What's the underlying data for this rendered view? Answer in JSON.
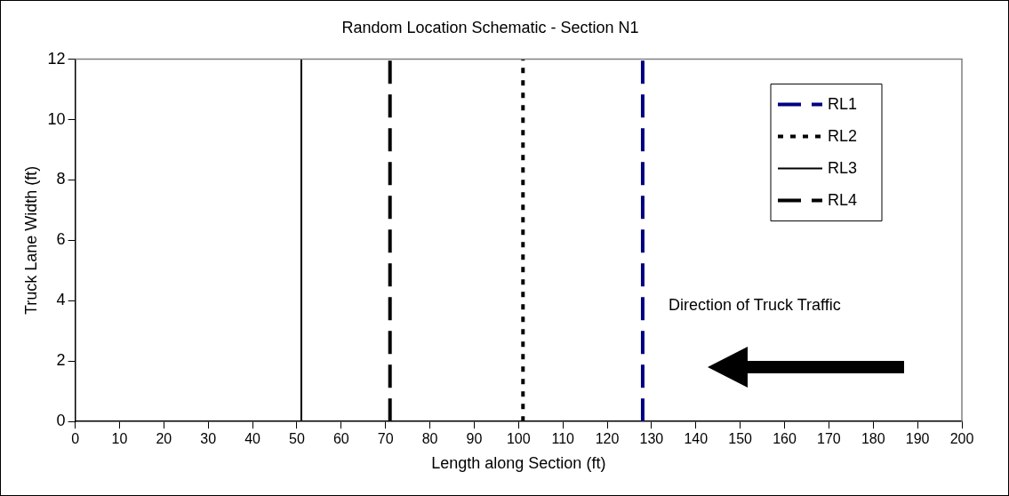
{
  "chart_data": {
    "type": "line",
    "title": "Random Location Schematic - Section N1",
    "xlabel": "Length along Section (ft)",
    "ylabel": "Truck Lane Width (ft)",
    "xlim": [
      0,
      200
    ],
    "xticks": [
      0,
      10,
      20,
      30,
      40,
      50,
      60,
      70,
      80,
      90,
      100,
      110,
      120,
      130,
      140,
      150,
      160,
      170,
      180,
      190,
      200
    ],
    "ylim": [
      0,
      12
    ],
    "yticks": [
      0,
      2,
      4,
      6,
      8,
      10,
      12
    ],
    "grid": false,
    "legend": "top right",
    "marker": "none",
    "series": [
      {
        "name": "RL1",
        "color": "#000080",
        "x": [
          128,
          128
        ],
        "values": [
          0,
          12
        ],
        "line_style": "dashed"
      },
      {
        "name": "RL2",
        "color": "#000000",
        "x": [
          101,
          101
        ],
        "values": [
          0,
          12
        ],
        "line_style": "dotted"
      },
      {
        "name": "RL3",
        "color": "#000000",
        "x": [
          51,
          51
        ],
        "values": [
          0,
          12
        ],
        "line_style": "solid"
      },
      {
        "name": "RL4",
        "color": "#000000",
        "x": [
          71,
          71
        ],
        "values": [
          0,
          12
        ],
        "line_style": "dashed"
      }
    ],
    "annotations": [
      "Direction of Truck Traffic"
    ]
  }
}
